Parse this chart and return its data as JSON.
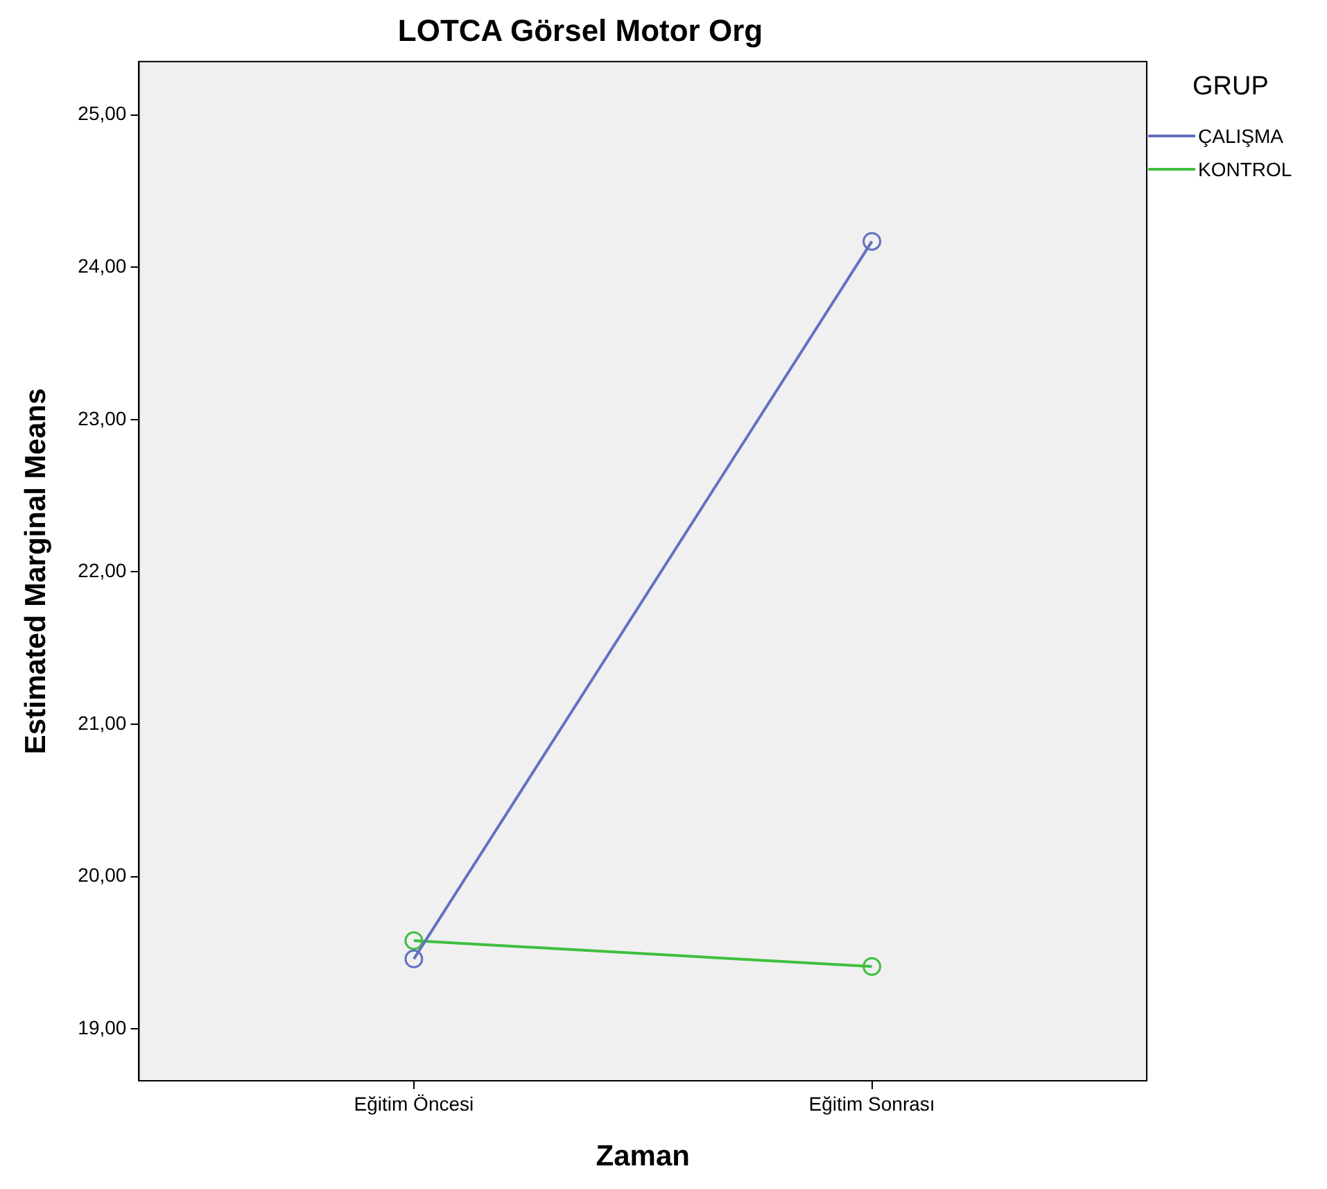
{
  "chart_data": {
    "type": "line",
    "title": "LOTCA Görsel Motor Org",
    "xlabel": "Zaman",
    "ylabel": "Estimated Marginal Means",
    "legend_title": "GRUP",
    "categories": [
      "Eğitim Öncesi",
      "Eğitim Sonrası"
    ],
    "series": [
      {
        "name": "ÇALIŞMA",
        "color": "#6272c0",
        "values": [
          19.46,
          24.17
        ]
      },
      {
        "name": "KONTROL",
        "color": "#3fbf3f",
        "values": [
          19.58,
          19.41
        ]
      }
    ],
    "ylim": [
      18.66,
      25.35
    ],
    "yticks": [
      {
        "value": 19,
        "label": "19,00"
      },
      {
        "value": 20,
        "label": "20,00"
      },
      {
        "value": 21,
        "label": "21,00"
      },
      {
        "value": 22,
        "label": "22,00"
      },
      {
        "value": 23,
        "label": "23,00"
      },
      {
        "value": 24,
        "label": "24,00"
      },
      {
        "value": 25,
        "label": "25,00"
      }
    ],
    "grid": false,
    "legend": "right",
    "marker": "circle",
    "line_style": "solid"
  }
}
